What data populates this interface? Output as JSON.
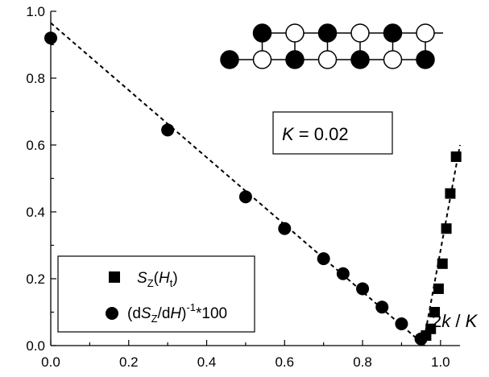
{
  "chart_data": {
    "type": "scatter",
    "xlim": [
      0,
      1.05
    ],
    "ylim": [
      0,
      1.0
    ],
    "x_ticks": [
      "0.0",
      "0.2",
      "0.4",
      "0.6",
      "0.8",
      "1.0"
    ],
    "y_ticks": [
      "0.0",
      "0.2",
      "0.4",
      "0.6",
      "0.8",
      "1.0"
    ],
    "grid": false,
    "legend_position": "bottom-left",
    "annotation_k": {
      "italic": "K",
      "rest": " = 0.02"
    },
    "annotation_2k": {
      "a": "2",
      "b": "k",
      "c": " / ",
      "d": "K"
    },
    "series": [
      {
        "marker": "square",
        "legend": {
          "s": "S",
          "sub": "Z",
          "open": "(",
          "h": "H",
          "hsub": "t",
          "close": ")"
        },
        "x": [
          0.963,
          0.975,
          0.985,
          0.995,
          1.005,
          1.015,
          1.025,
          1.04
        ],
        "y": [
          0.03,
          0.05,
          0.1,
          0.17,
          0.245,
          0.35,
          0.455,
          0.565
        ],
        "fit": {
          "x": [
            0.955,
            1.05
          ],
          "y": [
            0.0,
            0.6
          ]
        }
      },
      {
        "marker": "circle",
        "legend": {
          "open": "(d",
          "s": "S",
          "sub": "Z",
          "slash": "/d",
          "h": "H",
          "close": ")",
          "sup": "-1",
          "tail": "*100"
        },
        "x": [
          0.0,
          0.3,
          0.5,
          0.6,
          0.7,
          0.75,
          0.8,
          0.85,
          0.9,
          0.95
        ],
        "y": [
          0.92,
          0.645,
          0.445,
          0.35,
          0.26,
          0.215,
          0.17,
          0.115,
          0.065,
          0.02
        ],
        "fit": {
          "x": [
            0.0,
            0.96
          ],
          "y": [
            0.965,
            0.0
          ]
        }
      }
    ],
    "ladder": {
      "top_row": [
        "filled",
        "open",
        "filled",
        "open",
        "filled",
        "open"
      ],
      "bottom_row": [
        "filled",
        "open",
        "filled",
        "open",
        "filled",
        "open",
        "filled"
      ]
    },
    "colors": {
      "marker": "#000000",
      "open_marker": "#ffffff",
      "axis": "#000000"
    }
  }
}
